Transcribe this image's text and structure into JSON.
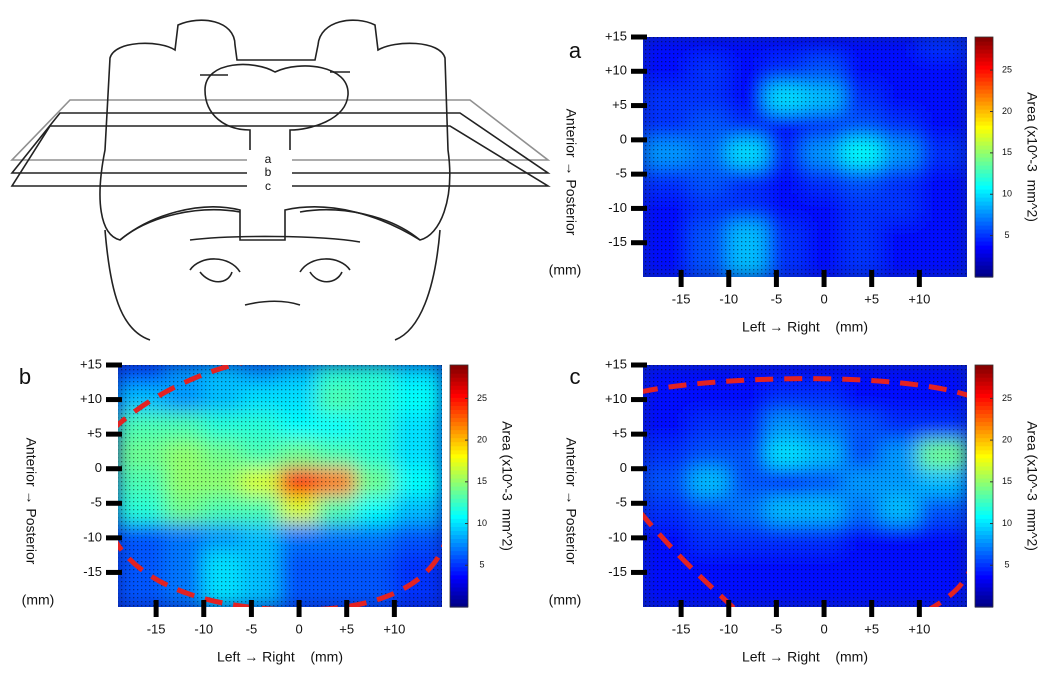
{
  "diagram": {
    "plane_labels": [
      "a",
      "b",
      "c"
    ]
  },
  "chart_data": [
    {
      "type": "heatmap",
      "panel_label": "a",
      "x": [
        -16,
        -12,
        -8,
        -4,
        0,
        4,
        8,
        12
      ],
      "y": [
        14,
        10,
        6,
        2,
        -2,
        -6,
        -10,
        -14
      ],
      "z": [
        [
          4,
          4,
          4,
          4,
          4,
          4,
          4,
          5
        ],
        [
          4,
          5,
          4,
          5,
          6,
          4,
          4,
          4
        ],
        [
          5,
          5,
          4,
          10,
          9,
          5,
          4,
          4
        ],
        [
          5,
          6,
          5,
          4,
          5,
          6,
          5,
          4
        ],
        [
          8,
          7,
          10,
          5,
          8,
          11,
          8,
          5
        ],
        [
          5,
          6,
          5,
          4,
          5,
          6,
          5,
          4
        ],
        [
          4,
          5,
          5,
          4,
          4,
          5,
          5,
          4
        ],
        [
          4,
          6,
          9,
          5,
          4,
          5,
          4,
          4
        ]
      ],
      "xlim": [
        -19,
        15
      ],
      "ylim": [
        -20,
        15
      ],
      "xticks": [
        -15,
        -10,
        -5,
        0,
        {
          "value": 5,
          "label": "+5"
        },
        {
          "value": 10,
          "label": "+10"
        }
      ],
      "yticks": [
        {
          "value": 15,
          "label": "+15"
        },
        {
          "value": 10,
          "label": "+10"
        },
        {
          "value": 5,
          "label": "+5"
        },
        0,
        -5,
        -10,
        -15
      ],
      "xlabel": "Left → Right    (mm)",
      "ylabel": "Anterior → Posterior",
      "yunit": "(mm)",
      "colormap": "jet",
      "colorbar": {
        "label": "Area (x10^-3  mm^2)",
        "lim": [
          0,
          29
        ],
        "ticks": [
          5,
          10,
          15,
          20,
          25
        ]
      }
    },
    {
      "type": "heatmap",
      "panel_label": "b",
      "x": [
        -16,
        -12,
        -8,
        -4,
        0,
        4,
        8,
        12
      ],
      "y": [
        14,
        10,
        6,
        2,
        -2,
        -6,
        -10,
        -14
      ],
      "z": [
        [
          6,
          8,
          9,
          8,
          9,
          12,
          12,
          10
        ],
        [
          9,
          8,
          9,
          10,
          10,
          13,
          12,
          11
        ],
        [
          13,
          13,
          12,
          12,
          11,
          11,
          12,
          10
        ],
        [
          14,
          15,
          14,
          13,
          14,
          13,
          12,
          10
        ],
        [
          13,
          15,
          15,
          17,
          25,
          22,
          14,
          11
        ],
        [
          12,
          14,
          13,
          13,
          17,
          13,
          11,
          9
        ],
        [
          6,
          7,
          8,
          9,
          7,
          7,
          7,
          6
        ],
        [
          6,
          7,
          10,
          9,
          6,
          6,
          6,
          5
        ]
      ],
      "xlim": [
        -19,
        15
      ],
      "ylim": [
        -20,
        15
      ],
      "xticks": [
        -15,
        -10,
        -5,
        0,
        {
          "value": 5,
          "label": "+5"
        },
        {
          "value": 10,
          "label": "+10"
        }
      ],
      "yticks": [
        {
          "value": 15,
          "label": "+15"
        },
        {
          "value": 10,
          "label": "+10"
        },
        {
          "value": 5,
          "label": "+5"
        },
        0,
        -5,
        -10,
        -15
      ],
      "xlabel": "Left → Right    (mm)",
      "ylabel": "Anterior → Posterior",
      "yunit": "(mm)",
      "colormap": "jet",
      "colorbar": {
        "label": "Area (x10^-3  mm^2)",
        "lim": [
          0,
          29
        ],
        "ticks": [
          5,
          10,
          15,
          20,
          25
        ]
      }
    },
    {
      "type": "heatmap",
      "panel_label": "c",
      "x": [
        -16,
        -12,
        -8,
        -4,
        0,
        4,
        8,
        12
      ],
      "y": [
        14,
        10,
        6,
        2,
        -2,
        -6,
        -10,
        -14
      ],
      "z": [
        [
          4,
          4,
          4,
          4,
          4,
          4,
          4,
          4
        ],
        [
          4,
          4,
          4,
          5,
          5,
          4,
          4,
          4
        ],
        [
          4,
          5,
          5,
          8,
          7,
          6,
          5,
          5
        ],
        [
          5,
          6,
          6,
          10,
          9,
          6,
          8,
          14
        ],
        [
          6,
          9,
          6,
          5,
          6,
          8,
          8,
          9
        ],
        [
          5,
          6,
          7,
          9,
          9,
          7,
          9,
          6
        ],
        [
          4,
          5,
          5,
          5,
          5,
          4,
          4,
          4
        ],
        [
          4,
          4,
          4,
          4,
          4,
          4,
          4,
          4
        ]
      ],
      "xlim": [
        -19,
        15
      ],
      "ylim": [
        -20,
        15
      ],
      "xticks": [
        -15,
        -10,
        -5,
        0,
        {
          "value": 5,
          "label": "+5"
        },
        {
          "value": 10,
          "label": "+10"
        }
      ],
      "yticks": [
        {
          "value": 15,
          "label": "+15"
        },
        {
          "value": 10,
          "label": "+10"
        },
        {
          "value": 5,
          "label": "+5"
        },
        0,
        -5,
        -10,
        -15
      ],
      "xlabel": "Left → Right    (mm)",
      "ylabel": "Anterior → Posterior",
      "yunit": "(mm)",
      "colormap": "jet",
      "colorbar": {
        "label": "Area (x10^-3  mm^2)",
        "lim": [
          0,
          29
        ],
        "ticks": [
          5,
          10,
          15,
          20,
          25
        ]
      }
    }
  ]
}
